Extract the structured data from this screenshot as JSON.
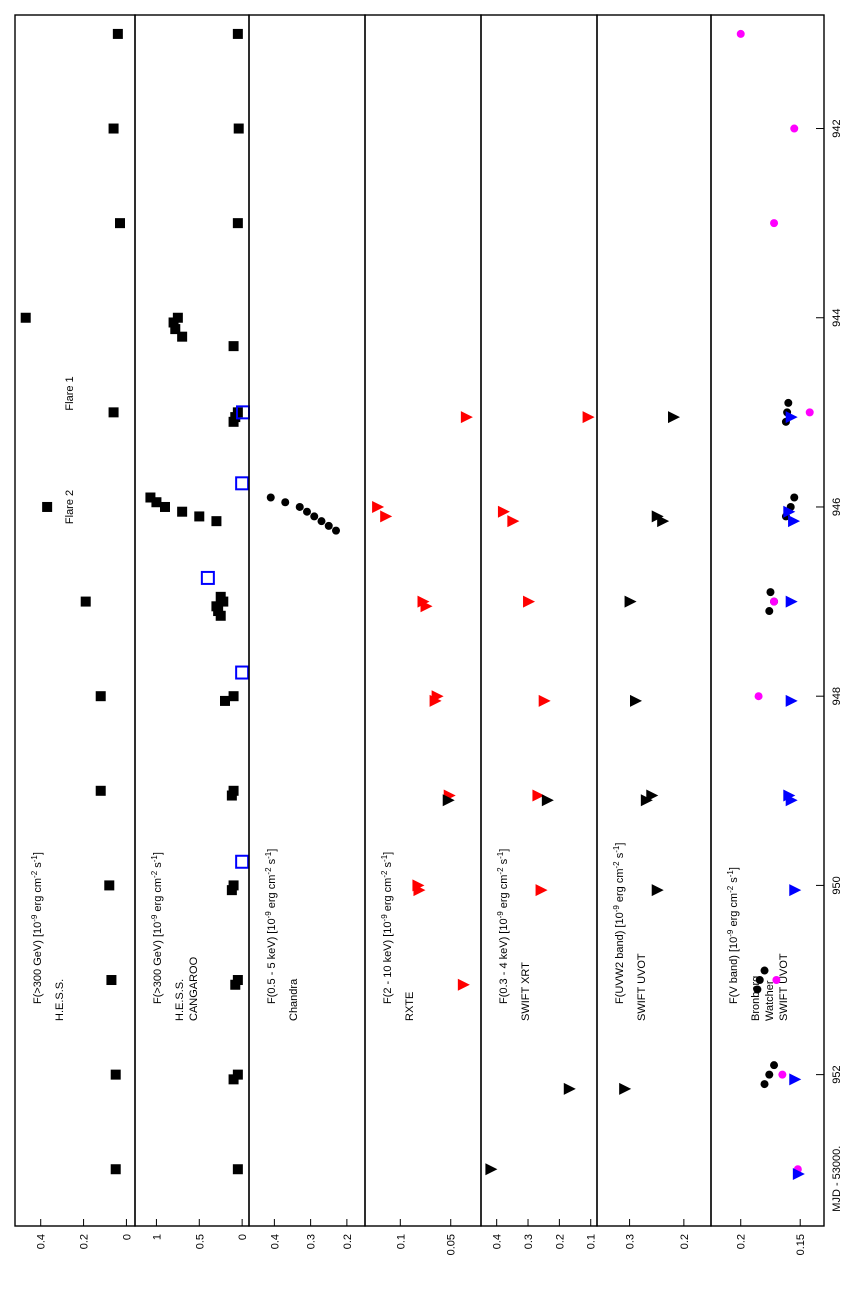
{
  "xaxis": {
    "label": "MJD - 53000.",
    "ticks": [
      "942",
      "944",
      "946",
      "948",
      "950",
      "952"
    ],
    "tick_values": [
      942,
      944,
      946,
      948,
      950,
      952
    ],
    "range": [
      940.8,
      953.6
    ]
  },
  "panels": [
    {
      "ylabel": [
        "F(>300 GeV) [10",
        "-9",
        " erg cm",
        "-2",
        " s",
        "-1",
        "]"
      ],
      "legend": [
        "H.E.S.S."
      ],
      "ticks": [
        "0.4",
        "0.2",
        "0"
      ],
      "tick_values": [
        0.4,
        0.2,
        0
      ],
      "range": [
        -0.04,
        0.52
      ],
      "annotations": [
        {
          "text": "Flare 1",
          "x": 944.8
        },
        {
          "text": "Flare 2",
          "x": 946.0
        }
      ]
    },
    {
      "ylabel": [
        "F(>300 GeV) [10",
        "-9",
        " erg cm",
        "-2",
        " s",
        "-1",
        "]"
      ],
      "legend": [
        "H.E.S.S.",
        "CANGAROO"
      ],
      "ticks": [
        "1",
        "0.5",
        "0"
      ],
      "tick_values": [
        1,
        0.5,
        0
      ],
      "range": [
        -0.08,
        1.25
      ]
    },
    {
      "ylabel": [
        "F(0.5 - 5 keV) [10",
        "-9",
        " erg cm",
        "-2",
        " s",
        "-1",
        "]"
      ],
      "legend": [
        "Chandra"
      ],
      "ticks": [
        "0.4",
        "0.3",
        "0.2"
      ],
      "tick_values": [
        0.4,
        0.3,
        0.2
      ],
      "range": [
        0.15,
        0.47
      ]
    },
    {
      "ylabel": [
        "F(2 - 10 keV) [10",
        "-9",
        " erg cm",
        "-2",
        " s",
        "-1",
        "]"
      ],
      "legend": [
        "RXTE"
      ],
      "ticks": [
        "0.1",
        "0.05"
      ],
      "tick_values": [
        0.1,
        0.05
      ],
      "range": [
        0.02,
        0.135
      ]
    },
    {
      "ylabel": [
        "F(0.3 - 4 keV) [10",
        "-9",
        " erg cm",
        "-2",
        " s",
        "-1",
        "]"
      ],
      "legend": [
        "SWIFT XRT"
      ],
      "ticks": [
        "0.4",
        "0.3",
        "0.2",
        "0.1"
      ],
      "tick_values": [
        0.4,
        0.3,
        0.2,
        0.1
      ],
      "range": [
        0.08,
        0.45
      ]
    },
    {
      "ylabel": [
        "F(UVW2 band) [10",
        "-9",
        " erg cm",
        "-2",
        " s",
        "-1",
        "]"
      ],
      "legend": [
        "SWIFT UVOT"
      ],
      "ticks": [
        "0.3",
        "0.2"
      ],
      "tick_values": [
        0.3,
        0.2
      ],
      "range": [
        0.15,
        0.36
      ]
    },
    {
      "ylabel": [
        "F(V band) [10",
        "-9",
        " erg cm",
        "-2",
        " s",
        "-1",
        "]"
      ],
      "legend": [
        "Bronberg",
        "Watcher",
        "SWIFT UVOT"
      ],
      "ticks": [
        "0.2",
        "0.15"
      ],
      "tick_values": [
        0.2,
        0.15
      ],
      "range": [
        0.13,
        0.225
      ]
    }
  ],
  "chart_data": [
    {
      "type": "scatter",
      "ylabel": "F(>300 GeV) [10^-9 erg cm^-2 s^-1]",
      "series": [
        {
          "name": "H.E.S.S.",
          "color": "#000000",
          "marker": "square",
          "x": [
            941.0,
            942.0,
            943.0,
            944.0,
            945.0,
            946.0,
            947.0,
            948.0,
            949.0,
            950.0,
            951.0,
            952.0,
            953.0
          ],
          "y": [
            0.04,
            0.06,
            0.03,
            0.47,
            0.06,
            0.37,
            0.19,
            0.12,
            0.12,
            0.08,
            0.07,
            0.05,
            0.05
          ]
        }
      ]
    },
    {
      "type": "scatter",
      "ylabel": "F(>300 GeV) [10^-9 erg cm^-2 s^-1]",
      "series": [
        {
          "name": "H.E.S.S.",
          "color": "#000000",
          "marker": "square",
          "x": [
            941.0,
            942.0,
            943.0,
            944.0,
            944.05,
            944.12,
            944.2,
            944.3,
            945.0,
            945.05,
            945.1,
            945.9,
            945.95,
            946.0,
            946.05,
            946.1,
            946.15,
            946.95,
            947.0,
            947.05,
            947.1,
            947.15,
            948.0,
            948.05,
            949.0,
            949.05,
            950.0,
            950.05,
            951.0,
            951.05,
            952.0,
            952.05,
            953.0
          ],
          "y": [
            0.05,
            0.04,
            0.05,
            0.75,
            0.8,
            0.78,
            0.7,
            0.1,
            0.05,
            0.08,
            0.1,
            1.07,
            1.0,
            0.9,
            0.7,
            0.5,
            0.3,
            0.25,
            0.22,
            0.3,
            0.28,
            0.25,
            0.1,
            0.2,
            0.1,
            0.12,
            0.1,
            0.12,
            0.05,
            0.08,
            0.05,
            0.1,
            0.05
          ]
        },
        {
          "name": "CANGAROO",
          "color": "#0000ff",
          "marker": "open-square",
          "x": [
            945.0,
            945.75,
            946.75,
            947.75,
            949.75
          ],
          "y": [
            -0.01,
            0.0,
            0.4,
            0.0,
            0.0
          ]
        }
      ]
    },
    {
      "type": "scatter",
      "ylabel": "F(0.5 - 5 keV) [10^-9 erg cm^-2 s^-1]",
      "series": [
        {
          "name": "Chandra",
          "color": "#000000",
          "marker": "point",
          "x": [
            945.9,
            945.95,
            946.0,
            946.05,
            946.1,
            946.15,
            946.2,
            946.25
          ],
          "y": [
            0.41,
            0.37,
            0.33,
            0.31,
            0.29,
            0.27,
            0.25,
            0.23
          ]
        }
      ]
    },
    {
      "type": "scatter",
      "ylabel": "F(2 - 10 keV) [10^-9 erg cm^-2 s^-1]",
      "series": [
        {
          "name": "RXTE",
          "color": "#ff0000",
          "marker": "triangle",
          "x": [
            945.05,
            946.0,
            946.1,
            947.0,
            947.05,
            948.0,
            948.05,
            949.05,
            950.0,
            950.05,
            951.05
          ],
          "y": [
            0.035,
            0.123,
            0.115,
            0.078,
            0.075,
            0.064,
            0.066,
            0.052,
            0.083,
            0.082,
            0.038
          ]
        },
        {
          "name": "RXTE",
          "color": "#000000",
          "marker": "triangle",
          "x": [
            949.1
          ],
          "y": [
            0.053
          ]
        }
      ]
    },
    {
      "type": "scatter",
      "ylabel": "F(0.3 - 4 keV) [10^-9 erg cm^-2 s^-1]",
      "series": [
        {
          "name": "SWIFT XRT",
          "color": "#ff0000",
          "marker": "triangle",
          "x": [
            945.05,
            946.05,
            946.15,
            947.0,
            948.05,
            949.05,
            950.05
          ],
          "y": [
            0.11,
            0.38,
            0.35,
            0.3,
            0.25,
            0.27,
            0.26
          ]
        },
        {
          "name": "SWIFT XRT",
          "color": "#000000",
          "marker": "triangle",
          "x": [
            949.1,
            952.15,
            953.0
          ],
          "y": [
            0.24,
            0.17,
            0.42
          ]
        }
      ]
    },
    {
      "type": "scatter",
      "ylabel": "F(UVW2 band) [10^-9 erg cm^-2 s^-1]",
      "series": [
        {
          "name": "SWIFT UVOT",
          "color": "#000000",
          "marker": "triangle",
          "x": [
            945.05,
            946.1,
            946.15,
            947.0,
            948.05,
            949.05,
            949.1,
            950.05,
            952.15
          ],
          "y": [
            0.22,
            0.25,
            0.24,
            0.3,
            0.29,
            0.26,
            0.27,
            0.25,
            0.31
          ]
        }
      ]
    },
    {
      "type": "scatter",
      "ylabel": "F(V band) [10^-9 erg cm^-2 s^-1]",
      "series": [
        {
          "name": "Bronberg",
          "color": "#000000",
          "marker": "point",
          "x": [
            944.9,
            945.0,
            945.1,
            945.9,
            946.0,
            946.1,
            946.9,
            947.0,
            947.1,
            950.9,
            951.0,
            951.1,
            951.9,
            952.0,
            952.1
          ],
          "y": [
            0.16,
            0.161,
            0.162,
            0.155,
            0.158,
            0.162,
            0.175,
            0.172,
            0.176,
            0.18,
            0.184,
            0.186,
            0.172,
            0.176,
            0.18
          ]
        },
        {
          "name": "Watcher",
          "color": "#ff00ff",
          "marker": "point",
          "x": [
            941.0,
            942.0,
            943.0,
            945.0,
            947.0,
            948.0,
            951.0,
            952.0,
            953.0
          ],
          "y": [
            0.2,
            0.155,
            0.172,
            0.142,
            0.172,
            0.185,
            0.17,
            0.165,
            0.152
          ]
        },
        {
          "name": "SWIFT UVOT",
          "color": "#0000ff",
          "marker": "triangle",
          "x": [
            945.05,
            946.05,
            946.15,
            947.0,
            948.05,
            949.05,
            949.1,
            950.05,
            952.05,
            953.05
          ],
          "y": [
            0.158,
            0.16,
            0.156,
            0.158,
            0.158,
            0.16,
            0.158,
            0.155,
            0.155,
            0.152
          ]
        }
      ]
    }
  ]
}
